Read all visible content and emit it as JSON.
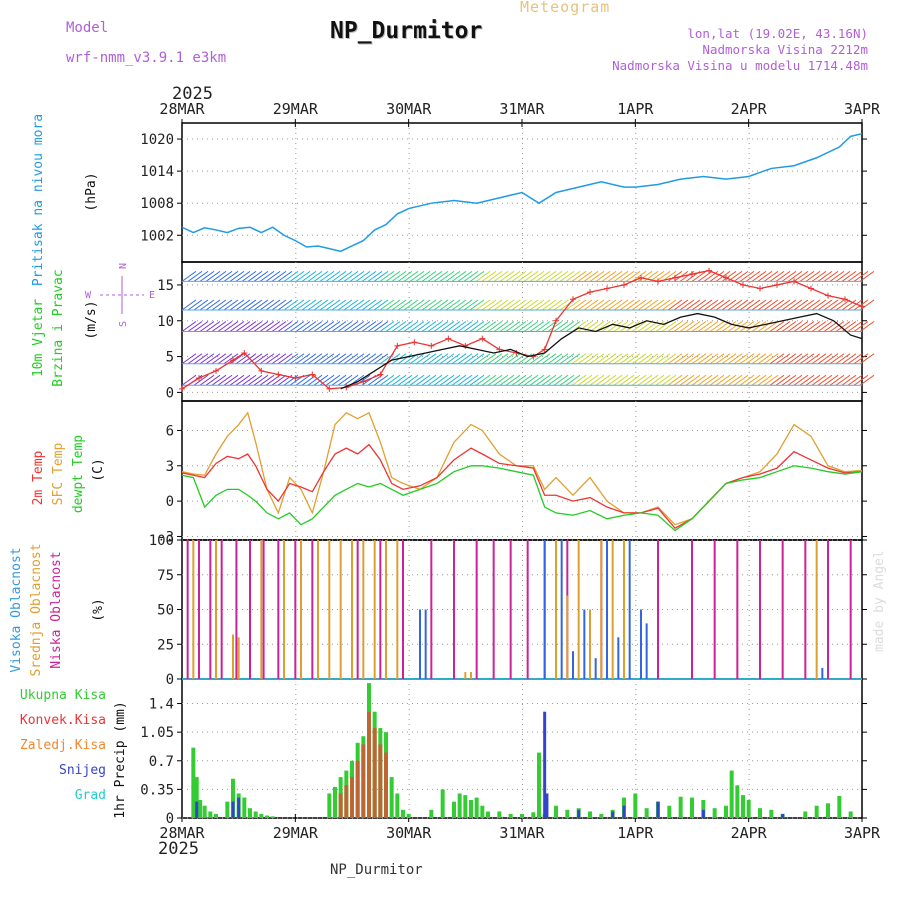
{
  "header": {
    "model_label": "Model",
    "model_name": "wrf-nmm_v3.9.1 e3km",
    "title": "NP_Durmitor",
    "subtitle": "Meteogram",
    "lonlat": "lon,lat (19.02E, 43.16N)",
    "altitude": "Nadmorska Visina 2212m",
    "model_altitude": "Nadmorska Visina u modelu 1714.48m",
    "year_top": "2025",
    "year_bottom": "2025",
    "credit": "made by Angel",
    "footer": "NP_Durmitor"
  },
  "colors": {
    "pressure": "#1f9be3",
    "wind_speed": "#ee3333",
    "wind_gust": "#111111",
    "temp2m": "#ee3333",
    "sfc_temp": "#e0a030",
    "dewpt": "#22cc22",
    "cloud_high": "#3366dd",
    "cloud_mid": "#dda030",
    "cloud_low": "#cc2299",
    "precip_total": "#33cc33",
    "precip_conv": "#ee3333",
    "precip_frozen": "#ee8833",
    "precip_snow": "#3344cc",
    "precip_hail": "#22cccc"
  },
  "chart_data": [
    {
      "type": "line",
      "name": "pressure",
      "ylabel_main": "Pritisak na nivou mora",
      "ylabel_unit": "(hPa)",
      "yticks": [
        1002,
        1008,
        1014,
        1020
      ],
      "ylim": [
        997,
        1023
      ],
      "x_days": [
        "28MAR",
        "29MAR",
        "30MAR",
        "31MAR",
        "1APR",
        "2APR",
        "3APR"
      ],
      "series": [
        {
          "name": "MSLP",
          "color": "#1f9be3",
          "x": [
            0,
            0.1,
            0.2,
            0.3,
            0.4,
            0.5,
            0.6,
            0.7,
            0.8,
            0.9,
            1.0,
            1.1,
            1.2,
            1.3,
            1.4,
            1.5,
            1.6,
            1.7,
            1.8,
            1.9,
            2.0,
            2.2,
            2.4,
            2.6,
            2.8,
            3.0,
            3.15,
            3.3,
            3.5,
            3.7,
            3.9,
            4.0,
            4.2,
            4.4,
            4.6,
            4.8,
            5.0,
            5.2,
            5.4,
            5.6,
            5.8,
            5.9,
            6.0
          ],
          "values": [
            1003.5,
            1002.5,
            1003.4,
            1003,
            1002.5,
            1003.3,
            1003.5,
            1002.5,
            1003.5,
            1002,
            1001,
            999.8,
            1000,
            999.5,
            999,
            1000,
            1001,
            1003,
            1004,
            1006,
            1007,
            1008,
            1008.5,
            1008,
            1009,
            1010,
            1008,
            1010,
            1011,
            1012,
            1011,
            1011,
            1011.5,
            1012.5,
            1013,
            1012.5,
            1013,
            1014.5,
            1015,
            1016.5,
            1018.5,
            1020.5,
            1021
          ]
        }
      ]
    },
    {
      "type": "line",
      "name": "wind",
      "ylabel_main": "10m Vjetar",
      "ylabel_sub": "Brzina i Pravac",
      "ylabel_unit": "(m/s)",
      "compass": "N",
      "compass_e": "E",
      "compass_w": "W",
      "compass_s": "S",
      "yticks": [
        0,
        5,
        10,
        15
      ],
      "ylim": [
        -1.2,
        18.2
      ],
      "series": [
        {
          "name": "speed",
          "color": "#ee3333",
          "x": [
            0,
            0.15,
            0.3,
            0.45,
            0.55,
            0.7,
            0.85,
            1.0,
            1.15,
            1.3,
            1.45,
            1.6,
            1.75,
            1.9,
            2.05,
            2.2,
            2.35,
            2.5,
            2.65,
            2.8,
            2.95,
            3.1,
            3.2,
            3.3,
            3.45,
            3.6,
            3.75,
            3.9,
            4.05,
            4.2,
            4.35,
            4.5,
            4.65,
            4.8,
            4.95,
            5.1,
            5.25,
            5.4,
            5.55,
            5.7,
            5.85,
            6.0
          ],
          "values": [
            0.5,
            2,
            3,
            4.5,
            5.5,
            3,
            2.5,
            2,
            2.5,
            0.5,
            0.7,
            1.5,
            2.5,
            6.5,
            7,
            6.5,
            7.5,
            6.5,
            7.5,
            6,
            5.5,
            5,
            6,
            10,
            13,
            14,
            14.5,
            15,
            16,
            15.5,
            16,
            16.5,
            17,
            16,
            15,
            14.5,
            15,
            15.5,
            14.5,
            13.5,
            13,
            12
          ]
        },
        {
          "name": "gust",
          "color": "#111111",
          "x": [
            1.4,
            1.55,
            1.7,
            1.85,
            2.0,
            2.15,
            2.3,
            2.45,
            2.6,
            2.75,
            2.9,
            3.05,
            3.2,
            3.35,
            3.5,
            3.65,
            3.8,
            3.95,
            4.1,
            4.25,
            4.4,
            4.55,
            4.7,
            4.85,
            5.0,
            5.15,
            5.3,
            5.45,
            5.6,
            5.75,
            5.9,
            6.0
          ],
          "values": [
            0.5,
            1.5,
            3,
            4.5,
            5,
            5.5,
            6,
            6.5,
            6,
            5.5,
            6,
            5,
            5.5,
            7.5,
            9,
            8.5,
            9.5,
            9,
            10,
            9.5,
            10.5,
            11,
            10.5,
            9.5,
            9,
            9.5,
            10,
            10.5,
            11,
            10,
            8,
            7.5
          ]
        }
      ]
    },
    {
      "type": "line",
      "name": "temperature",
      "ylabel_main": "2m Temp",
      "ylabel_sub": "SFC Temp",
      "ylabel_sub2": "dewpt Temp",
      "ylabel_unit": "(C)",
      "yticks": [
        -3,
        0,
        3,
        6
      ],
      "ylim": [
        -3.3,
        8.5
      ],
      "series": [
        {
          "name": "SFC Temp",
          "color": "#e0a030",
          "x": [
            0,
            0.1,
            0.2,
            0.3,
            0.4,
            0.5,
            0.58,
            0.65,
            0.75,
            0.85,
            0.95,
            1.05,
            1.15,
            1.25,
            1.35,
            1.45,
            1.55,
            1.65,
            1.75,
            1.85,
            1.95,
            2.1,
            2.25,
            2.4,
            2.55,
            2.65,
            2.8,
            2.95,
            3.1,
            3.2,
            3.3,
            3.45,
            3.6,
            3.75,
            3.9,
            4.05,
            4.2,
            4.35,
            4.5,
            4.65,
            4.8,
            4.95,
            5.1,
            5.25,
            5.4,
            5.55,
            5.7,
            5.85,
            6.0
          ],
          "values": [
            2.5,
            2.3,
            2.2,
            4,
            5.5,
            6.5,
            7.5,
            5,
            1,
            -1,
            2,
            1,
            -1,
            2.5,
            6.5,
            7.5,
            7,
            7.5,
            5,
            2,
            1.5,
            1,
            2,
            5,
            6.5,
            6,
            4,
            3,
            3,
            1,
            2,
            0.5,
            2,
            0,
            -1,
            -1,
            -0.5,
            -2,
            -1.5,
            0,
            1.5,
            2,
            2.5,
            4,
            6.5,
            5.5,
            3,
            2.5,
            2.6
          ]
        },
        {
          "name": "2m Temp",
          "color": "#ee3333",
          "x": [
            0,
            0.1,
            0.2,
            0.3,
            0.4,
            0.5,
            0.58,
            0.65,
            0.75,
            0.85,
            0.95,
            1.05,
            1.15,
            1.25,
            1.35,
            1.45,
            1.55,
            1.65,
            1.75,
            1.85,
            1.95,
            2.1,
            2.25,
            2.4,
            2.55,
            2.65,
            2.8,
            2.95,
            3.1,
            3.2,
            3.3,
            3.45,
            3.6,
            3.75,
            3.9,
            4.05,
            4.2,
            4.35,
            4.5,
            4.65,
            4.8,
            4.95,
            5.1,
            5.25,
            5.4,
            5.55,
            5.7,
            5.85,
            6.0
          ],
          "values": [
            2.4,
            2.2,
            2.0,
            3.2,
            3.8,
            3.6,
            4,
            3,
            1,
            0,
            1.5,
            1.2,
            0.8,
            2.5,
            4,
            4.5,
            4,
            4.8,
            3.5,
            1.5,
            1,
            1.3,
            2,
            3.5,
            4.5,
            4,
            3.2,
            3,
            2.8,
            0.5,
            0.5,
            0,
            0.3,
            -0.5,
            -1,
            -1,
            -0.6,
            -2.3,
            -1.5,
            0,
            1.5,
            2,
            2.3,
            2.8,
            4.2,
            3.5,
            2.8,
            2.4,
            2.5
          ]
        },
        {
          "name": "dewpt Temp",
          "color": "#22cc22",
          "x": [
            0,
            0.1,
            0.2,
            0.3,
            0.4,
            0.5,
            0.58,
            0.65,
            0.75,
            0.85,
            0.95,
            1.05,
            1.15,
            1.25,
            1.35,
            1.45,
            1.55,
            1.65,
            1.75,
            1.85,
            1.95,
            2.1,
            2.25,
            2.4,
            2.55,
            2.65,
            2.8,
            2.95,
            3.1,
            3.2,
            3.3,
            3.45,
            3.6,
            3.75,
            3.9,
            4.05,
            4.2,
            4.35,
            4.5,
            4.65,
            4.8,
            4.95,
            5.1,
            5.25,
            5.4,
            5.55,
            5.7,
            5.85,
            6.0
          ],
          "values": [
            2.2,
            2.0,
            -0.5,
            0.5,
            1,
            1,
            0.5,
            0,
            -1,
            -1.5,
            -1,
            -2,
            -1.5,
            -0.5,
            0.5,
            1,
            1.5,
            1.2,
            1.5,
            1,
            0.5,
            1,
            1.5,
            2.5,
            3,
            3,
            2.8,
            2.5,
            2.2,
            -0.5,
            -1,
            -1.2,
            -0.8,
            -1.5,
            -1.2,
            -1,
            -1.2,
            -2.5,
            -1.5,
            0,
            1.5,
            1.8,
            2,
            2.5,
            3,
            2.8,
            2.5,
            2.3,
            2.5
          ]
        }
      ]
    },
    {
      "type": "bar",
      "name": "cloud_cover",
      "ylabel_main": "Visoka Oblacnost",
      "ylabel_sub": "Srednja Oblacnost",
      "ylabel_sub2": "Niska Oblacnost",
      "ylabel_unit": "(%)",
      "yticks": [
        0,
        25,
        50,
        75,
        100
      ],
      "ylim": [
        0,
        100
      ],
      "series": [
        {
          "name": "Niska Oblacnost",
          "color": "#cc2299",
          "x": [
            0.05,
            0.15,
            0.25,
            0.35,
            0.48,
            0.6,
            0.72,
            0.85,
            1.0,
            1.15,
            1.55,
            1.75,
            1.95,
            2.2,
            2.4,
            2.6,
            2.75,
            2.9,
            3.05,
            3.2,
            3.4,
            3.7,
            3.9,
            4.2,
            4.5,
            4.7,
            4.9,
            5.1,
            5.3,
            5.5,
            5.7,
            5.9
          ],
          "values": [
            100,
            100,
            100,
            100,
            100,
            100,
            100,
            100,
            100,
            100,
            100,
            100,
            100,
            100,
            100,
            100,
            100,
            100,
            100,
            100,
            100,
            100,
            100,
            100,
            100,
            100,
            100,
            100,
            100,
            100,
            100,
            100
          ]
        },
        {
          "name": "Srednja Oblacnost",
          "color": "#dda030",
          "x": [
            0.1,
            0.3,
            0.45,
            0.5,
            0.7,
            0.9,
            1.05,
            1.2,
            1.3,
            1.4,
            1.5,
            1.6,
            1.7,
            1.8,
            1.9,
            2.5,
            2.55,
            3.3,
            3.4,
            3.5,
            3.6,
            3.7,
            3.8,
            3.9,
            5.6
          ],
          "values": [
            100,
            100,
            32,
            30,
            100,
            100,
            100,
            100,
            100,
            100,
            100,
            100,
            100,
            100,
            100,
            5,
            5,
            100,
            60,
            100,
            50,
            100,
            100,
            100,
            100
          ]
        },
        {
          "name": "Visoka Oblacnost",
          "color": "#3366dd",
          "x": [
            2.1,
            2.15,
            3.2,
            3.35,
            3.45,
            3.55,
            3.65,
            3.75,
            3.85,
            3.95,
            4.05,
            4.1,
            5.65
          ],
          "values": [
            50,
            50,
            100,
            100,
            20,
            50,
            15,
            100,
            30,
            100,
            50,
            40,
            8
          ]
        }
      ]
    },
    {
      "type": "bar",
      "name": "precipitation",
      "ylabel_main": "1hr Precip (mm)",
      "legend": [
        "Ukupna Kisa",
        "Konvek.Kisa",
        "Zaledj.Kisa",
        "Snijeg",
        "Grad"
      ],
      "yticks": [
        0,
        0.35,
        0.7,
        1.05,
        1.4
      ],
      "ytick_labels": [
        "0",
        "0.35",
        "0.7",
        "1.05",
        "1.4"
      ],
      "ylim": [
        0,
        1.7
      ],
      "series": [
        {
          "name": "Ukupna Kisa",
          "color": "#33cc33",
          "x": [
            0.1,
            0.13,
            0.16,
            0.2,
            0.25,
            0.3,
            0.4,
            0.45,
            0.5,
            0.55,
            0.6,
            0.65,
            0.7,
            0.75,
            0.8,
            1.3,
            1.35,
            1.4,
            1.45,
            1.5,
            1.55,
            1.6,
            1.65,
            1.7,
            1.75,
            1.8,
            1.85,
            1.9,
            1.95,
            2.0,
            2.2,
            2.3,
            2.4,
            2.45,
            2.5,
            2.55,
            2.6,
            2.65,
            2.7,
            2.8,
            2.9,
            3.0,
            3.1,
            3.15,
            3.2,
            3.3,
            3.4,
            3.5,
            3.6,
            3.7,
            3.8,
            3.9,
            4.0,
            4.1,
            4.2,
            4.3,
            4.4,
            4.5,
            4.6,
            4.7,
            4.8,
            4.85,
            4.9,
            4.95,
            5.0,
            5.1,
            5.2,
            5.3,
            5.5,
            5.6,
            5.7,
            5.8,
            5.9
          ],
          "values": [
            0.86,
            0.5,
            0.22,
            0.15,
            0.08,
            0.05,
            0.2,
            0.48,
            0.3,
            0.25,
            0.12,
            0.08,
            0.05,
            0.03,
            0.02,
            0.3,
            0.38,
            0.5,
            0.58,
            0.7,
            0.92,
            1.0,
            1.65,
            1.3,
            1.1,
            1.05,
            0.5,
            0.3,
            0.1,
            0.05,
            0.1,
            0.35,
            0.2,
            0.3,
            0.28,
            0.22,
            0.25,
            0.15,
            0.08,
            0.08,
            0.05,
            0.05,
            0.07,
            0.8,
            0.05,
            0.15,
            0.1,
            0.12,
            0.08,
            0.05,
            0.1,
            0.25,
            0.3,
            0.12,
            0.2,
            0.15,
            0.26,
            0.25,
            0.22,
            0.12,
            0.15,
            0.58,
            0.4,
            0.28,
            0.22,
            0.12,
            0.1,
            0.05,
            0.08,
            0.15,
            0.18,
            0.27,
            0.08
          ]
        },
        {
          "name": "Konvek.Kisa",
          "color": "#bb6633",
          "x": [
            1.4,
            1.45,
            1.5,
            1.55,
            1.6,
            1.65,
            1.7,
            1.75,
            1.8
          ],
          "values": [
            0.3,
            0.4,
            0.5,
            0.7,
            0.9,
            1.3,
            1.1,
            0.9,
            0.8
          ]
        },
        {
          "name": "Snijeg",
          "color": "#3344cc",
          "x": [
            0.13,
            0.45,
            0.5,
            3.2,
            3.22,
            3.5,
            3.8,
            3.9,
            4.2,
            4.6,
            5.3
          ],
          "values": [
            0.2,
            0.2,
            0.25,
            1.3,
            0.3,
            0.1,
            0.08,
            0.15,
            0.2,
            0.1,
            0.05
          ]
        }
      ]
    }
  ]
}
